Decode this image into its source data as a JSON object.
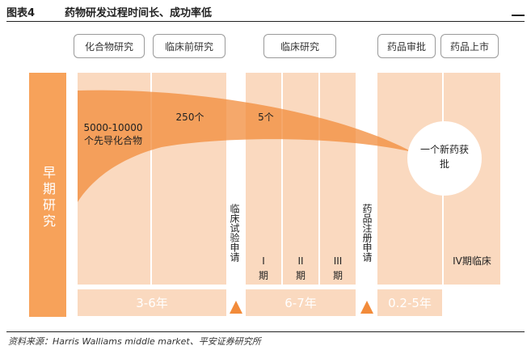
{
  "figure": {
    "label": "图表4",
    "title": "药物研发过程时间长、成功率低"
  },
  "stages": [
    {
      "id": "compound-research",
      "label": "化合物研究"
    },
    {
      "id": "preclinical",
      "label": "临床前研究"
    },
    {
      "id": "clinical",
      "label": "临床研究"
    },
    {
      "id": "drug-approval",
      "label": "药品审批"
    },
    {
      "id": "drug-launch",
      "label": "药品上市"
    }
  ],
  "early_stage": "早期研究",
  "counts": {
    "initial": "5000-10000个先导化合物",
    "preclinical": "250个",
    "clinical": "5个",
    "final": "一个新药获批"
  },
  "applications": {
    "clinical_trial": "临床试验申请",
    "drug_registration": "药品注册申请"
  },
  "phases": {
    "phase1": [
      "I",
      "期"
    ],
    "phase2": [
      "II",
      "期"
    ],
    "phase3": [
      "III",
      "期"
    ],
    "phase4": "IV期临床"
  },
  "durations": {
    "early": "3-6年",
    "clinical": "6-7年",
    "approval": "0.2-5年"
  },
  "colors": {
    "orange": "#f28b3a",
    "light_orange": "#fad9bf",
    "early_orange": "#f7a25a"
  },
  "source": "资料来源：Harris Walliams middle market、平安证券研究所"
}
